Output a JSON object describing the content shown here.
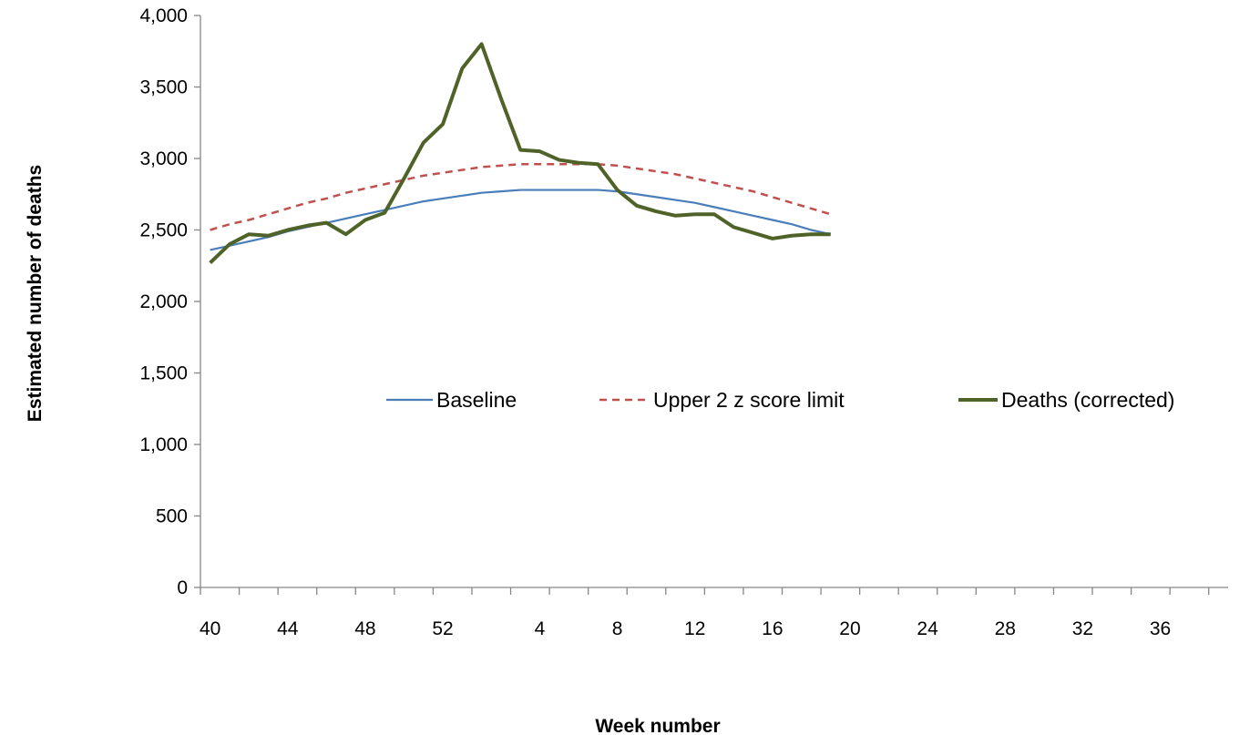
{
  "chart_data": {
    "type": "line",
    "xlabel": "Week number",
    "ylabel": "Estimated number of deaths",
    "ylim": [
      0,
      4000
    ],
    "yticks": [
      "0",
      "500",
      "1,000",
      "1,500",
      "2,000",
      "2,500",
      "3,000",
      "3,500",
      "4,000"
    ],
    "ytick_values": [
      0,
      500,
      1000,
      1500,
      2000,
      2500,
      3000,
      3500,
      4000
    ],
    "week_sequence": [
      40,
      41,
      42,
      43,
      44,
      45,
      46,
      47,
      48,
      49,
      50,
      51,
      52,
      53,
      1,
      2,
      3,
      4,
      5,
      6,
      7,
      8,
      9,
      10,
      11,
      12,
      13,
      14,
      15,
      16,
      17,
      18,
      19,
      20,
      21,
      22,
      23,
      24,
      25,
      26,
      27,
      28,
      29,
      30,
      31,
      32,
      33,
      34,
      35,
      36,
      37,
      38,
      39
    ],
    "xtick_labels": [
      "40",
      "44",
      "48",
      "52",
      "4",
      "8",
      "12",
      "16",
      "20",
      "24",
      "28",
      "32",
      "36"
    ],
    "grid": false,
    "legend_position": "center",
    "series": [
      {
        "name": "Baseline",
        "color": "#4a7ebb",
        "style": "solid",
        "values": [
          2360,
          2390,
          2420,
          2450,
          2490,
          2520,
          2550,
          2580,
          2610,
          2640,
          2670,
          2700,
          2720,
          2740,
          2760,
          2770,
          2780,
          2780,
          2780,
          2780,
          2780,
          2770,
          2750,
          2730,
          2710,
          2690,
          2660,
          2630,
          2600,
          2570,
          2540,
          2500,
          2470
        ]
      },
      {
        "name": "Upper 2 z score limit",
        "color": "#c0504d",
        "style": "dashed",
        "values": [
          2500,
          2540,
          2570,
          2610,
          2650,
          2690,
          2720,
          2760,
          2790,
          2820,
          2850,
          2880,
          2900,
          2920,
          2940,
          2950,
          2960,
          2960,
          2960,
          2960,
          2960,
          2950,
          2930,
          2910,
          2890,
          2860,
          2830,
          2800,
          2770,
          2730,
          2690,
          2650,
          2610
        ]
      },
      {
        "name": "Deaths (corrected)",
        "color": "#4f6228",
        "style": "solid-thick",
        "values": [
          2270,
          2400,
          2470,
          2460,
          2500,
          2530,
          2550,
          2470,
          2570,
          2620,
          2860,
          3110,
          3240,
          3630,
          3800,
          3420,
          3060,
          3050,
          2990,
          2970,
          2960,
          2780,
          2670,
          2630,
          2600,
          2610,
          2610,
          2520,
          2480,
          2440,
          2460,
          2470,
          2470
        ]
      }
    ]
  }
}
